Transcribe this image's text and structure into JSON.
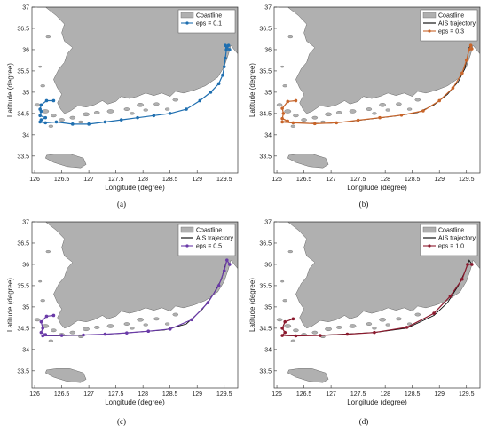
{
  "chart_data": [
    {
      "type": "line",
      "panel_label": "(a)",
      "xlabel": "Longitude (degree)",
      "ylabel": "Latitude (degree)",
      "xlim": [
        125.95,
        129.75
      ],
      "ylim": [
        33.1,
        37.0
      ],
      "xticks": [
        "126",
        "126.5",
        "127",
        "127.5",
        "128",
        "128.5",
        "129",
        "129.5"
      ],
      "yticks": [
        "33.5",
        "34",
        "34.5",
        "35",
        "35.5",
        "36",
        "36.5",
        "37"
      ],
      "grid": false,
      "legend_position": "top-right",
      "legend": [
        "Coastline",
        "eps = 0.1"
      ],
      "series": [
        {
          "name": "eps = 0.1",
          "color": "#1f6fb0",
          "x": [
            126.35,
            126.22,
            126.12,
            126.1,
            126.12,
            126.1,
            126.2,
            126.12,
            126.1,
            126.2,
            126.4,
            126.7,
            127.0,
            127.3,
            127.6,
            127.9,
            128.2,
            128.5,
            128.8,
            129.05,
            129.25,
            129.4,
            129.47,
            129.5,
            129.52,
            129.54,
            129.52,
            129.58,
            129.55,
            129.6
          ],
          "y": [
            34.8,
            34.8,
            34.7,
            34.6,
            34.55,
            34.45,
            34.4,
            34.35,
            34.3,
            34.28,
            34.3,
            34.25,
            34.25,
            34.3,
            34.35,
            34.4,
            34.45,
            34.5,
            34.6,
            34.8,
            35.0,
            35.2,
            35.4,
            35.6,
            35.8,
            36.0,
            36.1,
            36.1,
            36.05,
            36.0
          ]
        }
      ]
    },
    {
      "type": "line",
      "panel_label": "(b)",
      "xlabel": "Longitude (degree)",
      "ylabel": "Latitude (degree)",
      "xlim": [
        125.95,
        129.75
      ],
      "ylim": [
        33.1,
        37.0
      ],
      "xticks": [
        "126",
        "126.5",
        "127",
        "127.5",
        "128",
        "128.5",
        "129",
        "129.5"
      ],
      "yticks": [
        "33.5",
        "34",
        "34.5",
        "35",
        "35.5",
        "36",
        "36.5",
        "37"
      ],
      "grid": false,
      "legend_position": "top-right",
      "legend": [
        "Coastline",
        "AIS trajectory",
        "eps = 0.3"
      ],
      "series": [
        {
          "name": "AIS trajectory",
          "color": "#000000",
          "x": [
            126.35,
            126.2,
            126.1,
            126.12,
            126.1,
            126.2,
            126.1,
            126.25,
            126.6,
            127.0,
            127.4,
            127.8,
            128.2,
            128.6,
            128.9,
            129.15,
            129.35,
            129.47,
            129.52,
            129.55,
            129.58,
            129.6
          ],
          "y": [
            34.8,
            34.78,
            34.62,
            34.5,
            34.38,
            34.32,
            34.3,
            34.28,
            34.27,
            34.27,
            34.32,
            34.38,
            34.44,
            34.52,
            34.7,
            34.95,
            35.25,
            35.55,
            35.85,
            36.05,
            36.1,
            36.02
          ]
        },
        {
          "name": "eps = 0.3",
          "color": "#c8652a",
          "x": [
            126.35,
            126.2,
            126.1,
            126.12,
            126.1,
            126.2,
            126.1,
            126.3,
            126.7,
            127.1,
            127.5,
            127.9,
            128.3,
            128.7,
            129.0,
            129.25,
            129.42,
            129.5,
            129.55,
            129.58,
            129.6
          ],
          "y": [
            34.8,
            34.78,
            34.62,
            34.5,
            34.38,
            34.32,
            34.3,
            34.28,
            34.26,
            34.28,
            34.34,
            34.4,
            34.46,
            34.56,
            34.8,
            35.1,
            35.45,
            35.75,
            36.0,
            36.1,
            36.02
          ]
        }
      ]
    },
    {
      "type": "line",
      "panel_label": "(c)",
      "xlabel": "Longitude (degree)",
      "ylabel": "Latitude (degree)",
      "xlim": [
        125.95,
        129.75
      ],
      "ylim": [
        33.1,
        37.0
      ],
      "xticks": [
        "126",
        "126.5",
        "127",
        "127.5",
        "128",
        "128.5",
        "129",
        "129.5"
      ],
      "yticks": [
        "33.5",
        "34",
        "34.5",
        "35",
        "35.5",
        "36",
        "36.5",
        "37"
      ],
      "grid": false,
      "legend_position": "top-right",
      "legend": [
        "Coastline",
        "AIS trajectory",
        "eps = 0.5"
      ],
      "series": [
        {
          "name": "AIS trajectory",
          "color": "#000000",
          "x": [
            126.35,
            126.22,
            126.12,
            126.15,
            126.12,
            126.2,
            126.15,
            126.4,
            126.8,
            127.2,
            127.6,
            128.0,
            128.4,
            128.8,
            129.1,
            129.3,
            129.45,
            129.5,
            129.55,
            129.6
          ],
          "y": [
            34.8,
            34.78,
            34.65,
            34.5,
            34.4,
            34.35,
            34.32,
            34.32,
            34.33,
            34.35,
            34.38,
            34.42,
            34.46,
            34.6,
            34.95,
            35.3,
            35.65,
            35.9,
            36.1,
            36.0
          ]
        },
        {
          "name": "eps = 0.5",
          "color": "#6a3aa8",
          "x": [
            126.35,
            126.22,
            126.12,
            126.15,
            126.12,
            126.2,
            126.15,
            126.5,
            126.9,
            127.3,
            127.7,
            128.1,
            128.5,
            128.9,
            129.2,
            129.4,
            129.5,
            129.55,
            129.6
          ],
          "y": [
            34.8,
            34.78,
            34.65,
            34.5,
            34.4,
            34.35,
            34.32,
            34.33,
            34.34,
            34.36,
            34.39,
            34.43,
            34.48,
            34.7,
            35.1,
            35.5,
            35.85,
            36.1,
            36.0
          ]
        }
      ]
    },
    {
      "type": "line",
      "panel_label": "(d)",
      "xlabel": "Longitude (degree)",
      "ylabel": "Latitude (degree)",
      "xlim": [
        125.95,
        129.75
      ],
      "ylim": [
        33.1,
        37.0
      ],
      "xticks": [
        "126",
        "126.5",
        "127",
        "127.5",
        "128",
        "128.5",
        "129",
        "129.5"
      ],
      "yticks": [
        "33.5",
        "34",
        "34.5",
        "35",
        "35.5",
        "36",
        "36.5",
        "37"
      ],
      "grid": false,
      "legend_position": "top-right",
      "legend": [
        "Coastline",
        "AIS trajectory",
        "eps = 1.0"
      ],
      "series": [
        {
          "name": "AIS trajectory",
          "color": "#000000",
          "x": [
            126.3,
            126.15,
            126.1,
            126.15,
            126.1,
            126.3,
            126.7,
            127.2,
            127.8,
            128.4,
            128.9,
            129.15,
            129.35,
            129.48,
            129.55,
            129.6
          ],
          "y": [
            34.72,
            34.65,
            34.5,
            34.4,
            34.33,
            34.32,
            34.33,
            34.36,
            34.4,
            34.5,
            34.8,
            35.1,
            35.5,
            35.85,
            36.1,
            36.0
          ]
        },
        {
          "name": "eps = 1.0",
          "color": "#8b1a2e",
          "x": [
            126.3,
            126.15,
            126.1,
            126.15,
            126.1,
            126.35,
            126.8,
            127.3,
            127.8,
            128.4,
            128.9,
            129.2,
            129.42,
            129.52,
            129.6
          ],
          "y": [
            34.72,
            34.65,
            34.5,
            34.4,
            34.33,
            34.32,
            34.33,
            34.36,
            34.4,
            34.52,
            34.85,
            35.25,
            35.65,
            36.0,
            36.0
          ]
        }
      ]
    }
  ],
  "colors": {
    "land": "#b0b0b0",
    "land_edge": "#666666",
    "axis": "#333333"
  }
}
